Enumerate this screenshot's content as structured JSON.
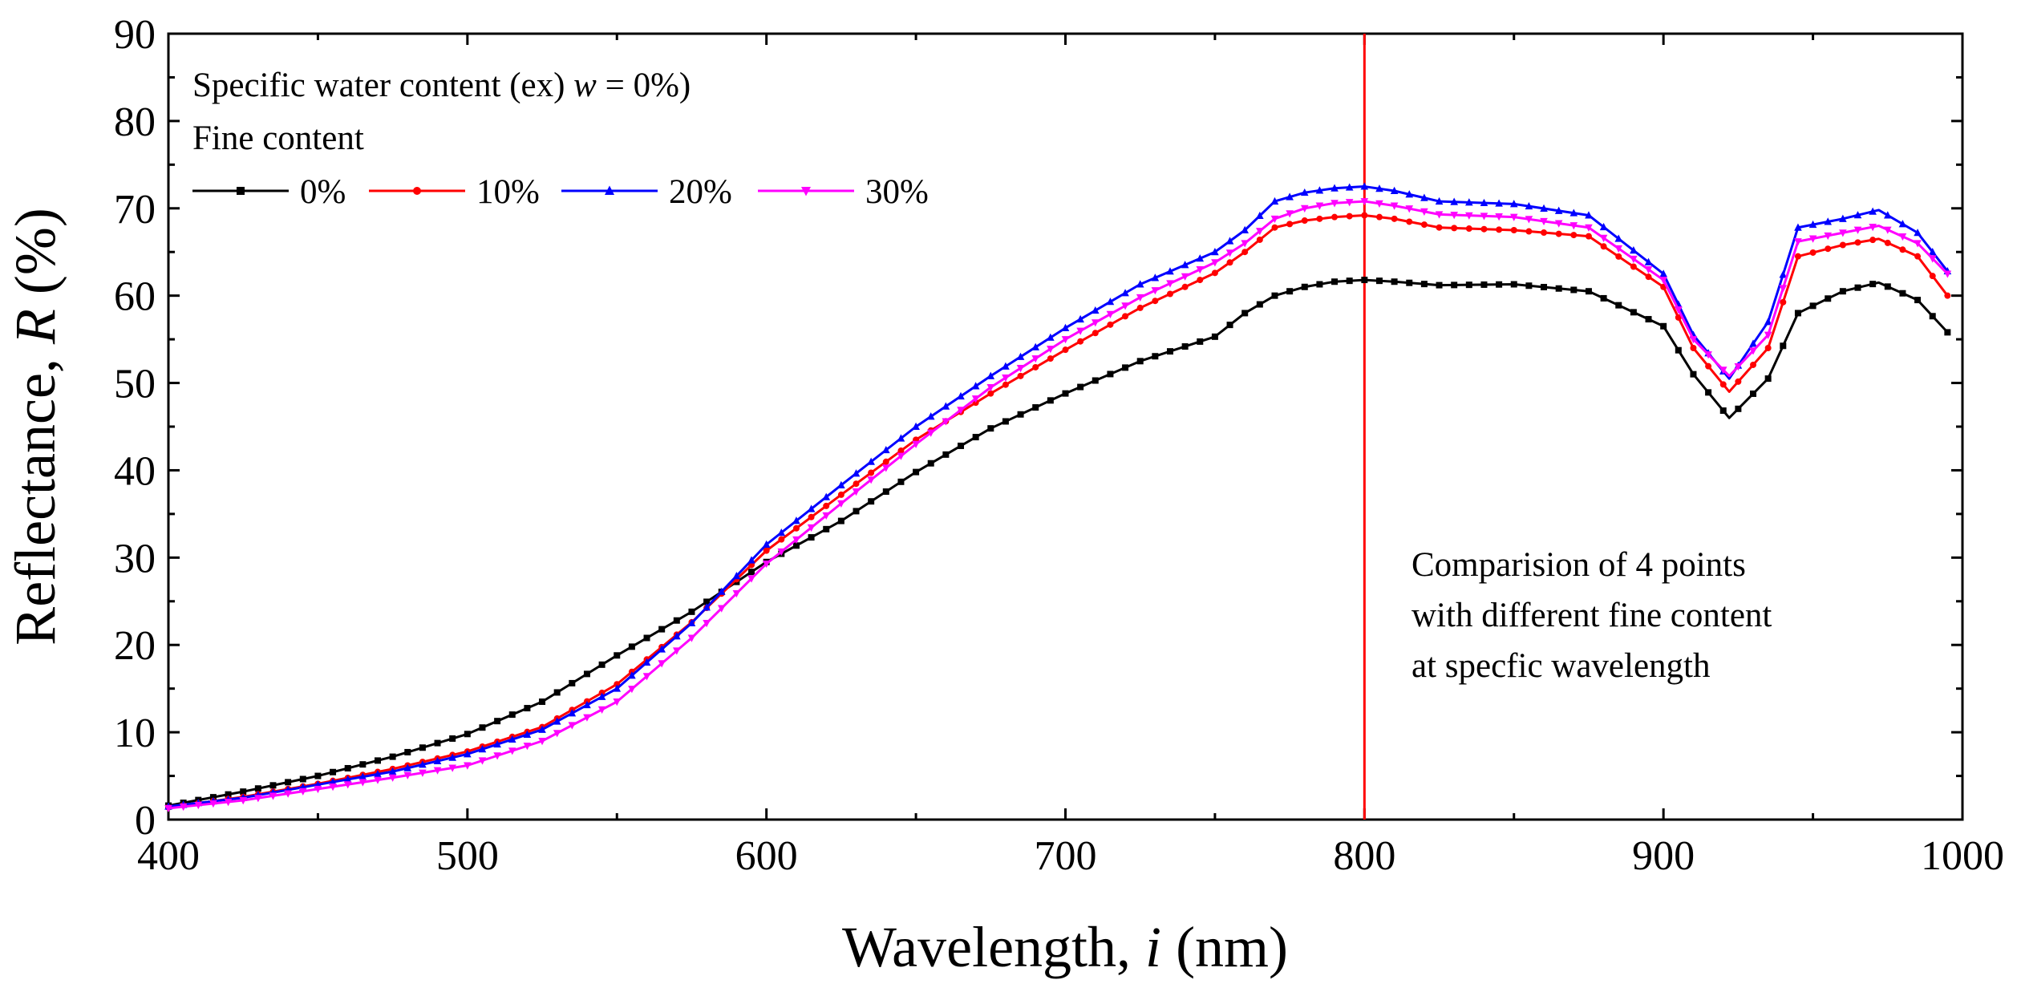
{
  "chart_data": {
    "type": "line",
    "title": "",
    "xlabel": {
      "prefix": "Wavelength, ",
      "symbol": "i",
      "suffix": " (nm)"
    },
    "ylabel": {
      "prefix": "Reflectance, ",
      "symbol": "R",
      "suffix": " (%)"
    },
    "xlim": [
      400,
      1000
    ],
    "ylim": [
      0,
      90
    ],
    "xticks": [
      400,
      500,
      600,
      700,
      800,
      900,
      1000
    ],
    "yticks": [
      0,
      10,
      20,
      30,
      40,
      50,
      60,
      70,
      80,
      90
    ],
    "grid": false,
    "legend": {
      "title_line1_prefix": "Specific water content (ex) ",
      "title_line1_symbol": "w",
      "title_line1_suffix": " = 0%)",
      "title_line2": "Fine content",
      "placement": "top-left"
    },
    "annotation": {
      "lines": [
        "Comparision of 4 points",
        "with different fine content",
        "at specfic wavelength"
      ],
      "x": 800,
      "color": "#ff0000"
    },
    "x": [
      400,
      425,
      450,
      475,
      500,
      525,
      550,
      575,
      600,
      625,
      650,
      675,
      700,
      725,
      750,
      760,
      770,
      780,
      790,
      800,
      810,
      825,
      850,
      875,
      900,
      910,
      922,
      935,
      945,
      960,
      972,
      985,
      995
    ],
    "series": [
      {
        "name": "0%",
        "color": "#000000",
        "marker": "square",
        "values": [
          1.6,
          3.2,
          5.0,
          7.2,
          9.8,
          13.5,
          18.8,
          23.8,
          29.5,
          34.2,
          39.8,
          44.8,
          48.8,
          52.5,
          55.3,
          58.0,
          60.0,
          61.0,
          61.6,
          61.8,
          61.6,
          61.2,
          61.3,
          60.5,
          56.5,
          51.0,
          46.0,
          50.5,
          58.0,
          60.5,
          61.5,
          59.5,
          55.8
        ]
      },
      {
        "name": "10%",
        "color": "#ff0000",
        "marker": "circle",
        "values": [
          1.4,
          2.6,
          4.1,
          5.8,
          7.8,
          10.6,
          15.5,
          22.6,
          30.8,
          37.2,
          43.5,
          48.8,
          53.8,
          58.6,
          62.6,
          65.0,
          67.8,
          68.6,
          69.0,
          69.2,
          68.8,
          67.8,
          67.5,
          66.8,
          61.0,
          54.0,
          49.0,
          54.0,
          64.5,
          65.8,
          66.5,
          64.5,
          60.0
        ]
      },
      {
        "name": "20%",
        "color": "#0000ff",
        "marker": "triangle-up",
        "values": [
          1.5,
          2.5,
          4.0,
          5.5,
          7.5,
          10.3,
          15.0,
          22.5,
          31.5,
          38.3,
          45.0,
          50.8,
          56.3,
          61.3,
          65.0,
          67.5,
          70.8,
          71.8,
          72.3,
          72.5,
          72.0,
          70.8,
          70.5,
          69.2,
          62.5,
          55.5,
          50.5,
          57.0,
          67.8,
          68.8,
          69.8,
          67.2,
          62.8
        ]
      },
      {
        "name": "30%",
        "color": "#ff00ff",
        "marker": "triangle-down",
        "values": [
          1.3,
          2.2,
          3.5,
          4.8,
          6.2,
          9.0,
          13.5,
          20.8,
          29.3,
          36.2,
          43.0,
          49.5,
          55.0,
          59.8,
          63.8,
          66.0,
          68.8,
          70.0,
          70.6,
          70.8,
          70.3,
          69.3,
          69.0,
          67.8,
          61.8,
          55.0,
          50.8,
          55.5,
          66.2,
          67.2,
          68.0,
          66.0,
          62.5
        ]
      }
    ]
  }
}
